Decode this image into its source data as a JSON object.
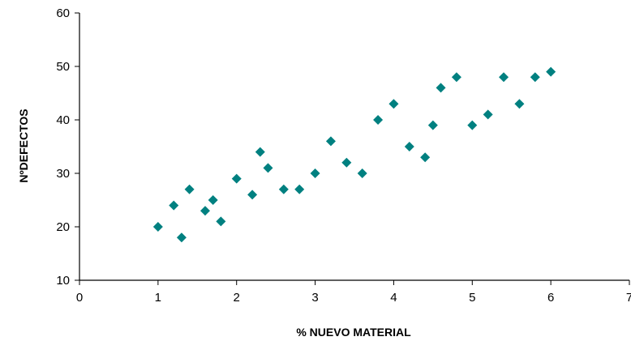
{
  "chart_data": {
    "type": "scatter",
    "title": "",
    "xlabel": "% NUEVO MATERIAL",
    "ylabel": "NºDEFECTOS",
    "xlim": [
      0,
      7
    ],
    "ylim": [
      10,
      60
    ],
    "xticks": [
      0,
      1,
      2,
      3,
      4,
      5,
      6,
      7
    ],
    "yticks": [
      10,
      20,
      30,
      40,
      50,
      60
    ],
    "grid": false,
    "legend": "none",
    "marker": "diamond",
    "marker_color": "#008080",
    "points": [
      {
        "x": 1.0,
        "y": 20
      },
      {
        "x": 1.2,
        "y": 24
      },
      {
        "x": 1.3,
        "y": 18
      },
      {
        "x": 1.4,
        "y": 27
      },
      {
        "x": 1.6,
        "y": 23
      },
      {
        "x": 1.7,
        "y": 25
      },
      {
        "x": 1.8,
        "y": 21
      },
      {
        "x": 2.0,
        "y": 29
      },
      {
        "x": 2.2,
        "y": 26
      },
      {
        "x": 2.3,
        "y": 34
      },
      {
        "x": 2.4,
        "y": 31
      },
      {
        "x": 2.6,
        "y": 27
      },
      {
        "x": 2.8,
        "y": 27
      },
      {
        "x": 3.0,
        "y": 30
      },
      {
        "x": 3.2,
        "y": 36
      },
      {
        "x": 3.4,
        "y": 32
      },
      {
        "x": 3.6,
        "y": 30
      },
      {
        "x": 3.8,
        "y": 40
      },
      {
        "x": 4.0,
        "y": 43
      },
      {
        "x": 4.2,
        "y": 35
      },
      {
        "x": 4.4,
        "y": 33
      },
      {
        "x": 4.5,
        "y": 39
      },
      {
        "x": 4.6,
        "y": 46
      },
      {
        "x": 4.8,
        "y": 48
      },
      {
        "x": 5.0,
        "y": 39
      },
      {
        "x": 5.2,
        "y": 41
      },
      {
        "x": 5.4,
        "y": 48
      },
      {
        "x": 5.6,
        "y": 43
      },
      {
        "x": 5.8,
        "y": 48
      },
      {
        "x": 6.0,
        "y": 49
      }
    ]
  }
}
